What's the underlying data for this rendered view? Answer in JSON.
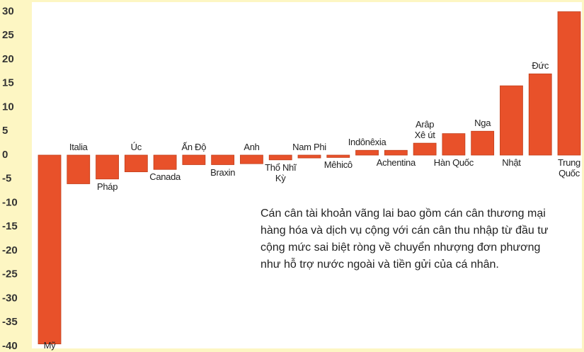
{
  "chart_data": {
    "type": "bar",
    "categories": [
      "Mỹ",
      "Italia",
      "Pháp",
      "Úc",
      "Canada",
      "Ấn Độ",
      "Braxin",
      "Anh",
      "Thổ Nhĩ Kỳ",
      "Nam Phi",
      "Mêhicô",
      "Indônêxia",
      "Achentina",
      "Arâp Xê út",
      "Hàn Quốc",
      "Nga",
      "Nhật",
      "Đức",
      "Trung Quốc"
    ],
    "values": [
      -39.5,
      -6,
      -5,
      -3.5,
      -3,
      -2,
      -2,
      -1.8,
      -1,
      -0.6,
      -0.5,
      1,
      1,
      2.5,
      4.5,
      5,
      14.5,
      17,
      30
    ],
    "color": "#e8512a",
    "ylim": [
      -40,
      30
    ],
    "yticks": [
      -40,
      -35,
      -30,
      -25,
      -20,
      -15,
      -10,
      -5,
      0,
      5,
      10,
      15,
      20,
      25,
      30
    ],
    "grid": false,
    "annotation": "Cán cân tài khoản vãng lai bao gồm cán cân thương mại hàng hóa và dịch vụ cộng với cán cân thu nhập từ đầu tư cộng mức sai biệt ròng về chuyển nhượng đơn phương như hỗ trợ nước ngoài và tiền gửi của cá nhân."
  }
}
